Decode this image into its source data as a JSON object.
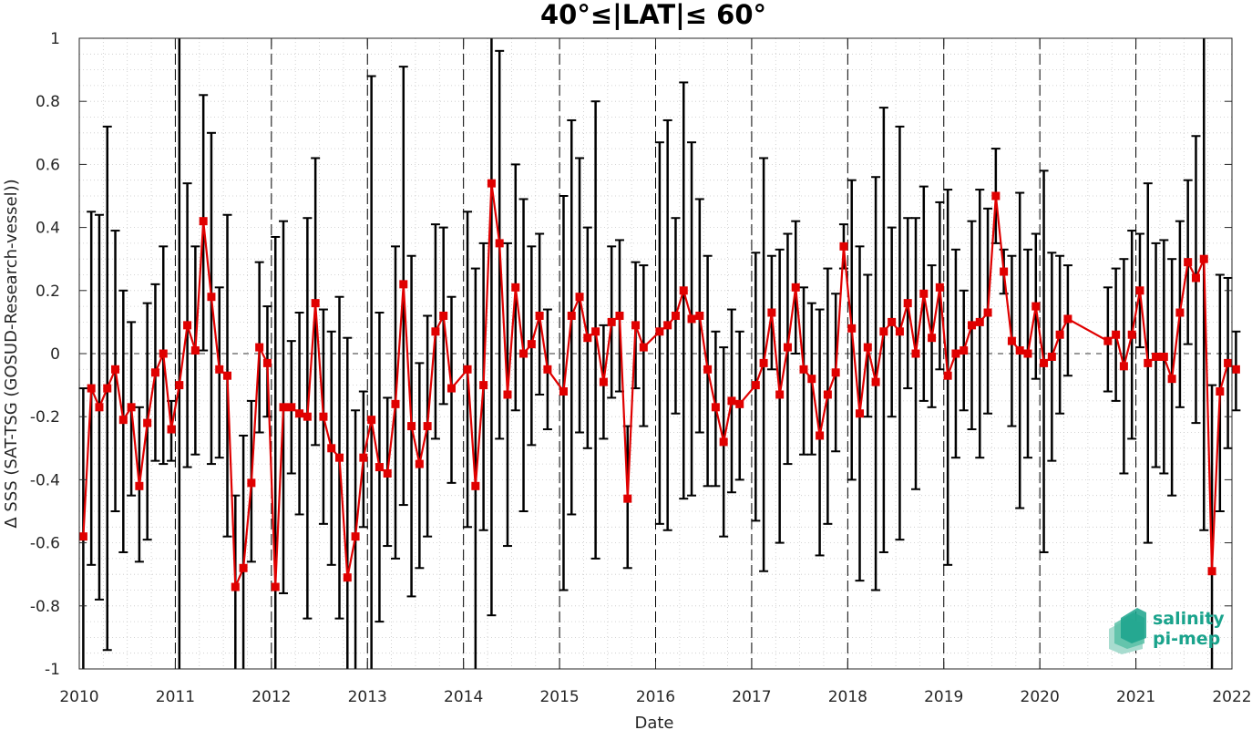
{
  "chart_data": {
    "type": "line",
    "title": "40°≤|LAT|≤ 60°",
    "xlabel": "Date",
    "ylabel": "Δ SSS (SAT-TSG (GOSUD-Research-vessel))",
    "xlim": [
      2010,
      2022
    ],
    "ylim": [
      -1,
      1
    ],
    "x_ticks": [
      2010,
      2011,
      2012,
      2013,
      2014,
      2015,
      2016,
      2017,
      2018,
      2019,
      2020,
      2021,
      2022
    ],
    "x_tick_labels": [
      "2010",
      "2011",
      "2012",
      "2013",
      "2014",
      "2015",
      "2016",
      "2017",
      "2018",
      "2019",
      "2020",
      "2021",
      "2022"
    ],
    "y_ticks": [
      -1,
      -0.8,
      -0.6,
      -0.4,
      -0.2,
      0,
      0.2,
      0.4,
      0.6,
      0.8,
      1
    ],
    "y_tick_labels": [
      "-1",
      "-0.8",
      "-0.6",
      "-0.4",
      "-0.2",
      "0",
      "0.2",
      "0.4",
      "0.6",
      "0.8",
      "1"
    ],
    "year_boundaries": [
      2011,
      2012,
      2013,
      2014,
      2015,
      2016,
      2017,
      2018,
      2019,
      2020,
      2021
    ],
    "grid": "minor-dotted",
    "zero_line": "dashed",
    "series": [
      {
        "color": "#e00000",
        "errorbar_color": "#000000",
        "marker": "square",
        "error_bars": "mean ± std",
        "points": [
          {
            "x": "2010-01",
            "y": -0.58,
            "low": -1.0,
            "high": -0.11
          },
          {
            "x": "2010-02",
            "y": -0.11,
            "low": -0.67,
            "high": 0.45
          },
          {
            "x": "2010-03",
            "y": -0.17,
            "low": -0.78,
            "high": 0.44
          },
          {
            "x": "2010-04",
            "y": -0.11,
            "low": -0.94,
            "high": 0.72
          },
          {
            "x": "2010-05",
            "y": -0.05,
            "low": -0.5,
            "high": 0.39
          },
          {
            "x": "2010-06",
            "y": -0.21,
            "low": -0.63,
            "high": 0.2
          },
          {
            "x": "2010-07",
            "y": -0.17,
            "low": -0.45,
            "high": 0.1
          },
          {
            "x": "2010-08",
            "y": -0.42,
            "low": -0.66,
            "high": -0.17
          },
          {
            "x": "2010-09",
            "y": -0.22,
            "low": -0.59,
            "high": 0.16
          },
          {
            "x": "2010-10",
            "y": -0.06,
            "low": -0.34,
            "high": 0.22
          },
          {
            "x": "2010-11",
            "y": 0.0,
            "low": -0.35,
            "high": 0.34
          },
          {
            "x": "2010-12",
            "y": -0.24,
            "low": -0.34,
            "high": -0.15
          },
          {
            "x": "2011-01",
            "y": -0.1,
            "low": -1.0,
            "high": 1.0
          },
          {
            "x": "2011-02",
            "y": 0.09,
            "low": -0.36,
            "high": 0.54
          },
          {
            "x": "2011-03",
            "y": 0.01,
            "low": -0.32,
            "high": 0.34
          },
          {
            "x": "2011-04",
            "y": 0.42,
            "low": 0.01,
            "high": 0.82
          },
          {
            "x": "2011-05",
            "y": 0.18,
            "low": -0.35,
            "high": 0.7
          },
          {
            "x": "2011-06",
            "y": -0.05,
            "low": -0.33,
            "high": 0.21
          },
          {
            "x": "2011-07",
            "y": -0.07,
            "low": -0.58,
            "high": 0.44
          },
          {
            "x": "2011-08",
            "y": -0.74,
            "low": -1.0,
            "high": -0.45
          },
          {
            "x": "2011-09",
            "y": -0.68,
            "low": -1.0,
            "high": -0.26
          },
          {
            "x": "2011-10",
            "y": -0.41,
            "low": -0.66,
            "high": -0.15
          },
          {
            "x": "2011-11",
            "y": 0.02,
            "low": -0.25,
            "high": 0.29
          },
          {
            "x": "2011-12",
            "y": -0.03,
            "low": -0.2,
            "high": 0.15
          },
          {
            "x": "2012-01",
            "y": -0.74,
            "low": -1.0,
            "high": 0.37
          },
          {
            "x": "2012-02",
            "y": -0.17,
            "low": -0.76,
            "high": 0.42
          },
          {
            "x": "2012-03",
            "y": -0.17,
            "low": -0.38,
            "high": 0.04
          },
          {
            "x": "2012-04",
            "y": -0.19,
            "low": -0.51,
            "high": 0.13
          },
          {
            "x": "2012-05",
            "y": -0.2,
            "low": -0.84,
            "high": 0.43
          },
          {
            "x": "2012-06",
            "y": 0.16,
            "low": -0.29,
            "high": 0.62
          },
          {
            "x": "2012-07",
            "y": -0.2,
            "low": -0.54,
            "high": 0.14
          },
          {
            "x": "2012-08",
            "y": -0.3,
            "low": -0.67,
            "high": 0.07
          },
          {
            "x": "2012-09",
            "y": -0.33,
            "low": -0.84,
            "high": 0.18
          },
          {
            "x": "2012-10",
            "y": -0.71,
            "low": -1.0,
            "high": 0.05
          },
          {
            "x": "2012-11",
            "y": -0.58,
            "low": -1.0,
            "high": -0.18
          },
          {
            "x": "2012-12",
            "y": -0.33,
            "low": -0.55,
            "high": -0.12
          },
          {
            "x": "2013-01",
            "y": -0.21,
            "low": -1.0,
            "high": 0.88
          },
          {
            "x": "2013-02",
            "y": -0.36,
            "low": -0.85,
            "high": 0.13
          },
          {
            "x": "2013-03",
            "y": -0.38,
            "low": -0.61,
            "high": -0.14
          },
          {
            "x": "2013-04",
            "y": -0.16,
            "low": -0.65,
            "high": 0.34
          },
          {
            "x": "2013-05",
            "y": 0.22,
            "low": -0.48,
            "high": 0.91
          },
          {
            "x": "2013-06",
            "y": -0.23,
            "low": -0.77,
            "high": 0.31
          },
          {
            "x": "2013-07",
            "y": -0.35,
            "low": -0.68,
            "high": -0.03
          },
          {
            "x": "2013-08",
            "y": -0.23,
            "low": -0.58,
            "high": 0.12
          },
          {
            "x": "2013-09",
            "y": 0.07,
            "low": -0.27,
            "high": 0.41
          },
          {
            "x": "2013-10",
            "y": 0.12,
            "low": -0.16,
            "high": 0.4
          },
          {
            "x": "2013-11",
            "y": -0.11,
            "low": -0.41,
            "high": 0.18
          },
          {
            "x": "2014-01",
            "y": -0.05,
            "low": -0.55,
            "high": 0.45
          },
          {
            "x": "2014-02",
            "y": -0.42,
            "low": -1.0,
            "high": 0.27
          },
          {
            "x": "2014-03",
            "y": -0.1,
            "low": -0.56,
            "high": 0.35
          },
          {
            "x": "2014-04",
            "y": 0.54,
            "low": -0.83,
            "high": 1.0
          },
          {
            "x": "2014-05",
            "y": 0.35,
            "low": -0.27,
            "high": 0.96
          },
          {
            "x": "2014-06",
            "y": -0.13,
            "low": -0.61,
            "high": 0.35
          },
          {
            "x": "2014-07",
            "y": 0.21,
            "low": -0.18,
            "high": 0.6
          },
          {
            "x": "2014-08",
            "y": 0.0,
            "low": -0.5,
            "high": 0.49
          },
          {
            "x": "2014-09",
            "y": 0.03,
            "low": -0.29,
            "high": 0.34
          },
          {
            "x": "2014-10",
            "y": 0.12,
            "low": -0.13,
            "high": 0.38
          },
          {
            "x": "2014-11",
            "y": -0.05,
            "low": -0.24,
            "high": 0.14
          },
          {
            "x": "2015-01",
            "y": -0.12,
            "low": -0.75,
            "high": 0.5
          },
          {
            "x": "2015-02",
            "y": 0.12,
            "low": -0.51,
            "high": 0.74
          },
          {
            "x": "2015-03",
            "y": 0.18,
            "low": -0.25,
            "high": 0.62
          },
          {
            "x": "2015-04",
            "y": 0.05,
            "low": -0.3,
            "high": 0.4
          },
          {
            "x": "2015-05",
            "y": 0.07,
            "low": -0.65,
            "high": 0.8
          },
          {
            "x": "2015-06",
            "y": -0.09,
            "low": -0.27,
            "high": 0.09
          },
          {
            "x": "2015-07",
            "y": 0.1,
            "low": -0.14,
            "high": 0.34
          },
          {
            "x": "2015-08",
            "y": 0.12,
            "low": -0.12,
            "high": 0.36
          },
          {
            "x": "2015-09",
            "y": -0.46,
            "low": -0.68,
            "high": -0.23
          },
          {
            "x": "2015-10",
            "y": 0.09,
            "low": -0.11,
            "high": 0.29
          },
          {
            "x": "2015-11",
            "y": 0.02,
            "low": -0.23,
            "high": 0.28
          },
          {
            "x": "2016-01",
            "y": 0.07,
            "low": -0.54,
            "high": 0.67
          },
          {
            "x": "2016-02",
            "y": 0.09,
            "low": -0.56,
            "high": 0.74
          },
          {
            "x": "2016-03",
            "y": 0.12,
            "low": -0.19,
            "high": 0.43
          },
          {
            "x": "2016-04",
            "y": 0.2,
            "low": -0.46,
            "high": 0.86
          },
          {
            "x": "2016-05",
            "y": 0.11,
            "low": -0.45,
            "high": 0.67
          },
          {
            "x": "2016-06",
            "y": 0.12,
            "low": -0.25,
            "high": 0.49
          },
          {
            "x": "2016-07",
            "y": -0.05,
            "low": -0.42,
            "high": 0.31
          },
          {
            "x": "2016-08",
            "y": -0.17,
            "low": -0.42,
            "high": 0.07
          },
          {
            "x": "2016-09",
            "y": -0.28,
            "low": -0.58,
            "high": 0.02
          },
          {
            "x": "2016-10",
            "y": -0.15,
            "low": -0.44,
            "high": 0.14
          },
          {
            "x": "2016-11",
            "y": -0.16,
            "low": -0.4,
            "high": 0.07
          },
          {
            "x": "2017-01",
            "y": -0.1,
            "low": -0.53,
            "high": 0.32
          },
          {
            "x": "2017-02",
            "y": -0.03,
            "low": -0.69,
            "high": 0.62
          },
          {
            "x": "2017-03",
            "y": 0.13,
            "low": -0.05,
            "high": 0.31
          },
          {
            "x": "2017-04",
            "y": -0.13,
            "low": -0.6,
            "high": 0.33
          },
          {
            "x": "2017-05",
            "y": 0.02,
            "low": -0.35,
            "high": 0.38
          },
          {
            "x": "2017-06",
            "y": 0.21,
            "low": 0.0,
            "high": 0.42
          },
          {
            "x": "2017-07",
            "y": -0.05,
            "low": -0.32,
            "high": 0.21
          },
          {
            "x": "2017-08",
            "y": -0.08,
            "low": -0.32,
            "high": 0.16
          },
          {
            "x": "2017-09",
            "y": -0.26,
            "low": -0.64,
            "high": 0.14
          },
          {
            "x": "2017-10",
            "y": -0.13,
            "low": -0.54,
            "high": 0.27
          },
          {
            "x": "2017-11",
            "y": -0.06,
            "low": -0.31,
            "high": 0.19
          },
          {
            "x": "2017-12",
            "y": 0.34,
            "low": 0.27,
            "high": 0.41
          },
          {
            "x": "2018-01",
            "y": 0.08,
            "low": -0.4,
            "high": 0.55
          },
          {
            "x": "2018-02",
            "y": -0.19,
            "low": -0.72,
            "high": 0.34
          },
          {
            "x": "2018-03",
            "y": 0.02,
            "low": -0.2,
            "high": 0.25
          },
          {
            "x": "2018-04",
            "y": -0.09,
            "low": -0.75,
            "high": 0.56
          },
          {
            "x": "2018-05",
            "y": 0.07,
            "low": -0.63,
            "high": 0.78
          },
          {
            "x": "2018-06",
            "y": 0.1,
            "low": -0.2,
            "high": 0.4
          },
          {
            "x": "2018-07",
            "y": 0.07,
            "low": -0.59,
            "high": 0.72
          },
          {
            "x": "2018-08",
            "y": 0.16,
            "low": -0.11,
            "high": 0.43
          },
          {
            "x": "2018-09",
            "y": 0.0,
            "low": -0.43,
            "high": 0.43
          },
          {
            "x": "2018-10",
            "y": 0.19,
            "low": -0.15,
            "high": 0.53
          },
          {
            "x": "2018-11",
            "y": 0.05,
            "low": -0.17,
            "high": 0.28
          },
          {
            "x": "2018-12",
            "y": 0.21,
            "low": -0.05,
            "high": 0.48
          },
          {
            "x": "2019-01",
            "y": -0.07,
            "low": -0.67,
            "high": 0.52
          },
          {
            "x": "2019-02",
            "y": 0.0,
            "low": -0.33,
            "high": 0.33
          },
          {
            "x": "2019-03",
            "y": 0.01,
            "low": -0.18,
            "high": 0.2
          },
          {
            "x": "2019-04",
            "y": 0.09,
            "low": -0.24,
            "high": 0.42
          },
          {
            "x": "2019-05",
            "y": 0.1,
            "low": -0.33,
            "high": 0.52
          },
          {
            "x": "2019-06",
            "y": 0.13,
            "low": -0.19,
            "high": 0.46
          },
          {
            "x": "2019-07",
            "y": 0.5,
            "low": 0.35,
            "high": 0.65
          },
          {
            "x": "2019-08",
            "y": 0.26,
            "low": 0.19,
            "high": 0.33
          },
          {
            "x": "2019-09",
            "y": 0.04,
            "low": -0.23,
            "high": 0.31
          },
          {
            "x": "2019-10",
            "y": 0.01,
            "low": -0.49,
            "high": 0.51
          },
          {
            "x": "2019-11",
            "y": 0.0,
            "low": -0.33,
            "high": 0.33
          },
          {
            "x": "2019-12",
            "y": 0.15,
            "low": -0.08,
            "high": 0.38
          },
          {
            "x": "2020-01",
            "y": -0.03,
            "low": -0.63,
            "high": 0.58
          },
          {
            "x": "2020-02",
            "y": -0.01,
            "low": -0.34,
            "high": 0.32
          },
          {
            "x": "2020-03",
            "y": 0.06,
            "low": -0.19,
            "high": 0.31
          },
          {
            "x": "2020-04",
            "y": 0.11,
            "low": -0.07,
            "high": 0.28
          },
          {
            "x": "2020-09",
            "y": 0.04,
            "low": -0.12,
            "high": 0.21
          },
          {
            "x": "2020-10",
            "y": 0.06,
            "low": -0.15,
            "high": 0.27
          },
          {
            "x": "2020-11",
            "y": -0.04,
            "low": -0.38,
            "high": 0.3
          },
          {
            "x": "2020-12",
            "y": 0.06,
            "low": -0.27,
            "high": 0.39
          },
          {
            "x": "2021-01",
            "y": 0.2,
            "low": 0.02,
            "high": 0.38
          },
          {
            "x": "2021-02",
            "y": -0.03,
            "low": -0.6,
            "high": 0.54
          },
          {
            "x": "2021-03",
            "y": -0.01,
            "low": -0.36,
            "high": 0.35
          },
          {
            "x": "2021-04",
            "y": -0.01,
            "low": -0.38,
            "high": 0.36
          },
          {
            "x": "2021-05",
            "y": -0.08,
            "low": -0.45,
            "high": 0.3
          },
          {
            "x": "2021-06",
            "y": 0.13,
            "low": -0.17,
            "high": 0.42
          },
          {
            "x": "2021-07",
            "y": 0.29,
            "low": 0.03,
            "high": 0.55
          },
          {
            "x": "2021-08",
            "y": 0.24,
            "low": -0.22,
            "high": 0.69
          },
          {
            "x": "2021-09",
            "y": 0.3,
            "low": -0.56,
            "high": 1.0
          },
          {
            "x": "2021-10",
            "y": -0.69,
            "low": -1.0,
            "high": -0.1
          },
          {
            "x": "2021-11",
            "y": -0.12,
            "low": -0.5,
            "high": 0.25
          },
          {
            "x": "2021-12",
            "y": -0.03,
            "low": -0.3,
            "high": 0.24
          },
          {
            "x": "2022-01",
            "y": -0.05,
            "low": -0.18,
            "high": 0.07
          }
        ]
      }
    ],
    "logo": {
      "line1": "salinity",
      "line2": "pi-mep",
      "color": "#1aa38c"
    }
  }
}
